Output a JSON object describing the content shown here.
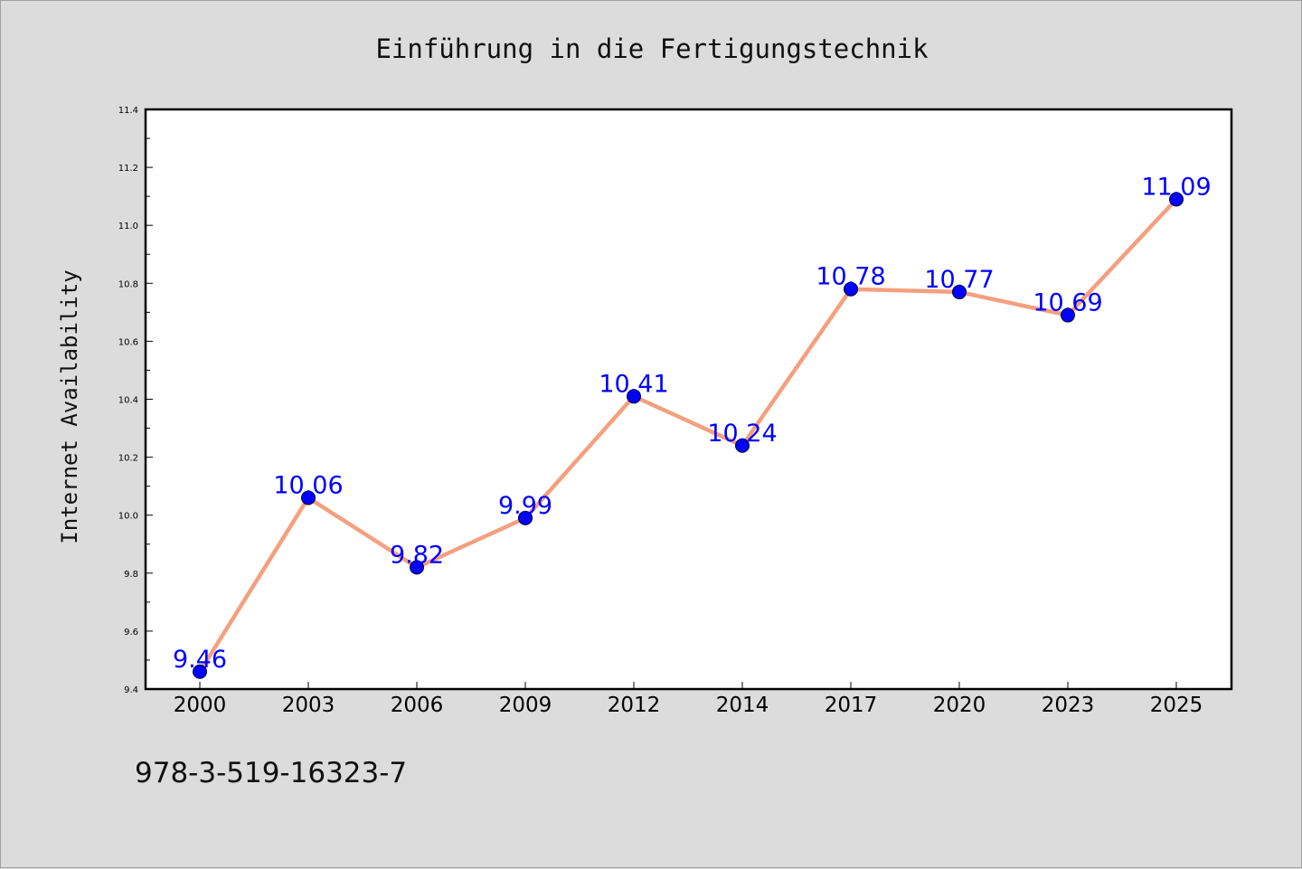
{
  "chart_data": {
    "type": "line",
    "title": "Einführung in die Fertigungstechnik",
    "xlabel": "",
    "ylabel": "Internet Availability",
    "categories": [
      "2000",
      "2003",
      "2006",
      "2009",
      "2012",
      "2014",
      "2017",
      "2020",
      "2023",
      "2025"
    ],
    "series": [
      {
        "values": [
          9.46,
          10.06,
          9.82,
          9.99,
          10.41,
          10.24,
          10.78,
          10.77,
          10.69,
          11.09
        ],
        "labels": [
          "9.46",
          "10.06",
          "9.82",
          "9.99",
          "10.41",
          "10.24",
          "10.78",
          "10.77",
          "10.69",
          "11.09"
        ],
        "line_color": "#f4a07f",
        "marker_color": "#0000ff"
      }
    ],
    "ylim": [
      9.4,
      11.4
    ],
    "yticks": [
      "9.4",
      "9.6",
      "9.8",
      "10.0",
      "10.2",
      "10.4",
      "10.6",
      "10.8",
      "11.0",
      "11.2",
      "11.4"
    ],
    "grid": false,
    "legend": "none"
  },
  "footer": {
    "isbn": "978-3-519-16323-7"
  },
  "colors": {
    "background": "#dcdcdc",
    "plot_background": "#ffffff",
    "line": "#f4a07f",
    "marker": "#0000ff",
    "data_label": "#0000ff"
  }
}
